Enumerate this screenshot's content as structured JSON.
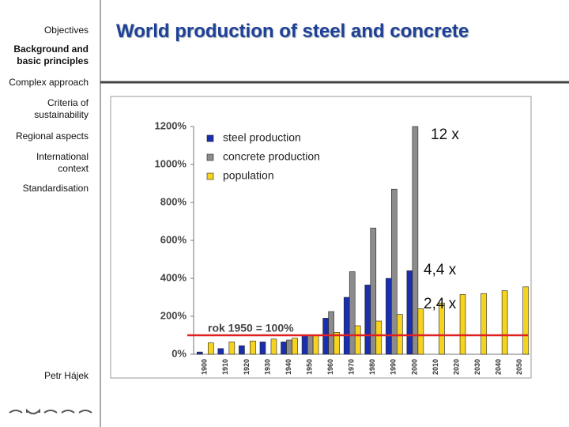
{
  "sidebar": {
    "items": [
      "Objectives",
      "Background and basic principles",
      "Complex approach",
      "Criteria of sustainability",
      "Regional aspects",
      "International context",
      "Standardisation"
    ],
    "author": "Petr Hájek"
  },
  "chart_data": {
    "type": "bar",
    "title": "World production of steel and concrete",
    "categories": [
      "1900",
      "1910",
      "1920",
      "1930",
      "1940",
      "1950",
      "1960",
      "1970",
      "1980",
      "1990",
      "2000",
      "2010",
      "2020",
      "2030",
      "2040",
      "2050"
    ],
    "series": [
      {
        "name": "steel production",
        "color": "#1a2fb0",
        "values": [
          12,
          30,
          45,
          65,
          65,
          100,
          190,
          300,
          365,
          400,
          440,
          null,
          null,
          null,
          null,
          null
        ]
      },
      {
        "name": "concrete production",
        "color": "#8c8c8c",
        "values": [
          null,
          null,
          null,
          null,
          75,
          100,
          225,
          435,
          665,
          870,
          1200,
          null,
          null,
          null,
          null,
          null
        ]
      },
      {
        "name": "population",
        "color": "#f5d31e",
        "values": [
          60,
          65,
          70,
          80,
          85,
          100,
          115,
          150,
          175,
          210,
          240,
          270,
          315,
          320,
          335,
          355
        ]
      }
    ],
    "ylim": [
      0,
      1200
    ],
    "yticks": [
      {
        "value": 0,
        "label": "0%"
      },
      {
        "value": 200,
        "label": "200%"
      },
      {
        "value": 400,
        "label": "400%"
      },
      {
        "value": 600,
        "label": "600%"
      },
      {
        "value": 800,
        "label": "800%"
      },
      {
        "value": 1000,
        "label": "1000%"
      },
      {
        "value": 1200,
        "label": "1200%"
      }
    ],
    "reference_line": {
      "value": 100,
      "label": "rok 1950 = 100%",
      "color": "#e02020"
    },
    "annotations": [
      "12 x",
      "4,4 x",
      "2,4 x"
    ],
    "legend": "top-left"
  }
}
